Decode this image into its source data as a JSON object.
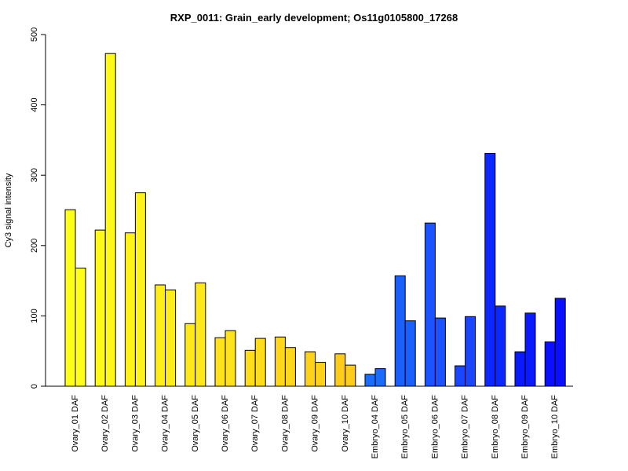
{
  "chart_data": {
    "type": "bar",
    "title": "RXP_0011: Grain_early development; Os11g0105800_17268",
    "xlabel": "",
    "ylabel": "Cy3 signal intensity",
    "ylim": [
      0,
      500
    ],
    "yticks": [
      0,
      100,
      200,
      300,
      400,
      500
    ],
    "grid": false,
    "legend": "none",
    "categories": [
      "Ovary_01 DAF",
      "Ovary_02 DAF",
      "Ovary_03 DAF",
      "Ovary_04 DAF",
      "Ovary_05 DAF",
      "Ovary_06 DAF",
      "Ovary_07 DAF",
      "Ovary_08 DAF",
      "Ovary_09 DAF",
      "Ovary_10 DAF",
      "Embryo_04 DAF",
      "Embryo_05 DAF",
      "Embryo_06 DAF",
      "Embryo_07 DAF",
      "Embryo_08 DAF",
      "Embryo_09 DAF",
      "Embryo_10 DAF"
    ],
    "series": [
      {
        "values": [
          251,
          222,
          218,
          144,
          89,
          69,
          51,
          70,
          49,
          46,
          17,
          157,
          232,
          29,
          331,
          49,
          63
        ]
      },
      {
        "values": [
          168,
          473,
          275,
          137,
          147,
          79,
          68,
          55,
          34,
          30,
          25,
          93,
          97,
          99,
          114,
          104,
          125
        ]
      }
    ],
    "colors": [
      "#FFFF1A",
      "#FFF91A",
      "#FFF31A",
      "#FFEE1A",
      "#FFE91A",
      "#FFE21A",
      "#FFDD1A",
      "#FFD71A",
      "#FFD21A",
      "#FFCC1A",
      "#1A6CFF",
      "#1A60FF",
      "#1A53FF",
      "#1A46FF",
      "#0A28FF",
      "#0A1AFF",
      "#0A10FF"
    ]
  }
}
